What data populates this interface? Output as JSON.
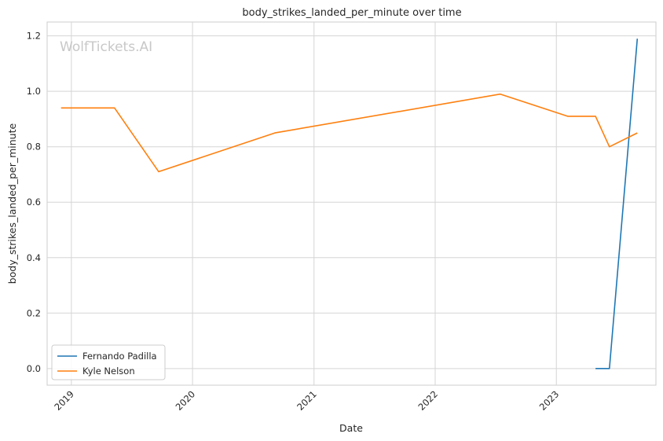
{
  "chart_data": {
    "type": "line",
    "title": "body_strikes_landed_per_minute over time",
    "xlabel": "Date",
    "ylabel": "body_strikes_landed_per_minute",
    "watermark": "WolfTickets.AI",
    "x_ticks": [
      "2019",
      "2020",
      "2021",
      "2022",
      "2023"
    ],
    "y_ticks": [
      "0.0",
      "0.2",
      "0.4",
      "0.6",
      "0.8",
      "1.0",
      "1.2"
    ],
    "xlim": [
      "2018-10-20",
      "2023-10-28"
    ],
    "ylim": [
      -0.06,
      1.25
    ],
    "grid": true,
    "legend_position": "lower-left",
    "series": [
      {
        "name": "Fernando Padilla",
        "color": "#1f77b4",
        "x": [
          "2023-04-29",
          "2023-06-10",
          "2023-09-02"
        ],
        "y": [
          0.0,
          0.0,
          1.19
        ]
      },
      {
        "name": "Kyle Nelson",
        "color": "#ff7f0e",
        "x": [
          "2018-12-01",
          "2019-05-11",
          "2019-09-21",
          "2020-09-05",
          "2022-07-16",
          "2023-02-04",
          "2023-04-29",
          "2023-06-10",
          "2023-09-02"
        ],
        "y": [
          0.94,
          0.94,
          0.71,
          0.85,
          0.99,
          0.91,
          0.91,
          0.8,
          0.85
        ]
      }
    ]
  }
}
